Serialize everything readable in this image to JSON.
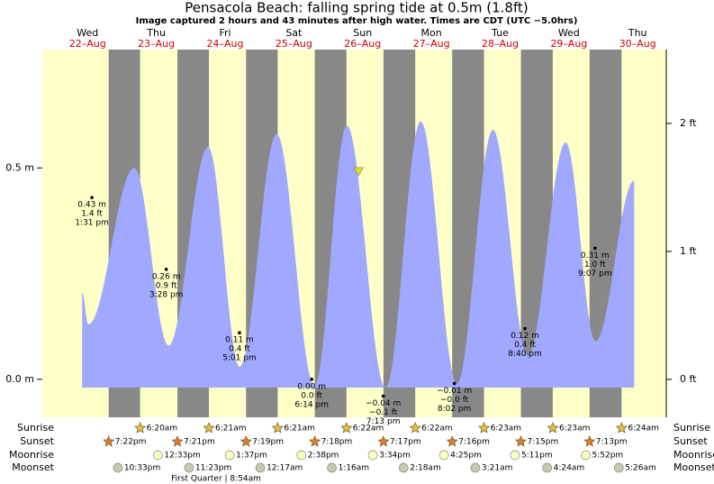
{
  "chart_data": {
    "type": "tide",
    "title": "Pensacola Beach: falling  spring tide at 0.5m (1.8ft)",
    "subtitle": "Image captured 2 hours and 43 minutes after high water. Times are CDT (UTC −5.0hrs)",
    "weekdays": [
      "Wed",
      "Thu",
      "Fri",
      "Sat",
      "Sun",
      "Mon",
      "Tue",
      "Wed",
      "Thu"
    ],
    "dates": [
      "22–Aug",
      "23–Aug",
      "24–Aug",
      "25–Aug",
      "26–Aug",
      "27–Aug",
      "28–Aug",
      "29–Aug",
      "30–Aug"
    ],
    "xlim": [
      -3.8,
      214
    ],
    "ylim": [
      -0.09,
      0.78
    ],
    "yticks": [
      {
        "value": 0.0,
        "label": "0.0 m"
      },
      {
        "value": 0.5,
        "label": "0.5 m"
      }
    ],
    "y2lim": [
      -0.296,
      2.577
    ],
    "y2ticks": [
      {
        "value": 0,
        "label": "0 ft"
      },
      {
        "value": 1,
        "label": "1 ft"
      },
      {
        "value": 2,
        "label": "2 ft"
      }
    ],
    "tide": {
      "color": "#a0a8ff",
      "x": [
        10.1,
        12.3,
        28.3,
        40.3,
        54.1,
        65.1,
        78,
        91.2,
        102.5,
        116,
        128.3,
        140.9,
        153.5,
        165.7,
        178.9,
        189.3,
        202.8
      ],
      "values": [
        0.205,
        0.13,
        0.5,
        0.08,
        0.55,
        0.03,
        0.58,
        -0.015,
        0.6,
        -0.02,
        0.61,
        -0.01,
        0.59,
        0.055,
        0.56,
        0.09,
        0.47
      ]
    },
    "now": {
      "x": 106.6,
      "value": 0.49,
      "color": "#e8e000"
    },
    "lows": {
      "values": [
        0.43,
        0.26,
        0.11,
        0,
        -0.04,
        -0.01,
        0.12,
        0.31
      ],
      "value_labels": [
        "0.43 m",
        "0.26 m",
        "0.11 m",
        "0.00 m",
        "−0.04 m",
        "−0.01 m",
        "0.12 m",
        "0.31 m"
      ],
      "ft_labels": [
        "1.4 ft",
        "0.9 ft",
        "0.4 ft",
        "0.0 ft",
        "−0.1 ft",
        "−0.0 ft",
        "0.4 ft",
        "1.0 ft"
      ],
      "times": [
        "1:31 pm",
        "3:28 pm",
        "5:01 pm",
        "6:14 pm",
        "7:13 pm",
        "8:02 pm",
        "8:40 pm",
        "9:07 pm"
      ]
    },
    "day_color": "#ffffc8",
    "night_color": "#888888",
    "row_labels": [
      "Sunrise",
      "Sunset",
      "Moonrise",
      "Moonset"
    ],
    "sunrise": [
      null,
      "6:20am",
      "6:21am",
      "6:21am",
      "6:22am",
      "6:22am",
      "6:23am",
      "6:23am",
      "6:24am"
    ],
    "sunset": [
      "7:22pm",
      "7:21pm",
      "7:19pm",
      "7:18pm",
      "7:17pm",
      "7:16pm",
      "7:15pm",
      "7:13pm",
      null
    ],
    "moonrise": [
      null,
      "12:33pm",
      "1:37pm",
      "2:38pm",
      "3:34pm",
      "4:25pm",
      "5:11pm",
      "5:52pm",
      null
    ],
    "moonset": [
      "10:33pm",
      "11:23pm",
      null,
      "12:17am",
      "1:16am",
      "2:18am",
      "3:21am",
      "4:24am",
      "5:26am"
    ],
    "moon_phase": "First Quarter | 8:54am"
  }
}
